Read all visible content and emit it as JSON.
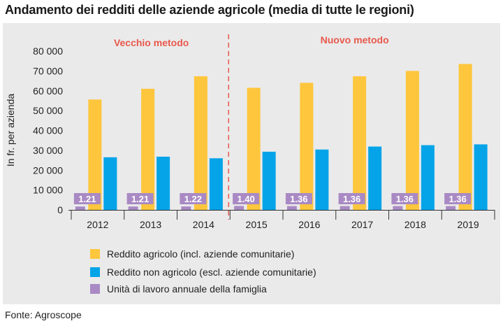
{
  "title": "Andamento dei redditi delle aziende agricole (media di tutte le regioni)",
  "source": "Fonte: Agroscope",
  "colors": {
    "reddito_agricolo": "#fec63c",
    "reddito_non_agricolo": "#05a4e8",
    "unita_lavoro": "#a98ac4",
    "label_box": "#a98ac4",
    "method_text": "#e8584c",
    "divider": "#e8584c",
    "panel_bg": "#eaeaea"
  },
  "chart_data": {
    "type": "bar",
    "title": "Andamento dei redditi delle aziende agricole (media di tutte le regioni)",
    "xlabel": "",
    "ylabel": "In fr. per azienda",
    "ylim": [
      0,
      80000
    ],
    "yticks": [
      0,
      10000,
      20000,
      30000,
      40000,
      50000,
      60000,
      70000,
      80000
    ],
    "ytick_labels": [
      "0",
      "10 000",
      "20 000",
      "30 000",
      "40 000",
      "50 000",
      "60 000",
      "70 000",
      "80 000"
    ],
    "categories": [
      "2012",
      "2013",
      "2014",
      "2015",
      "2016",
      "2017",
      "2018",
      "2019"
    ],
    "series": [
      {
        "name": "Reddito agricolo (incl. aziende comunitarie)",
        "key": "reddito_agricolo",
        "values": [
          55600,
          61000,
          67300,
          61500,
          64000,
          67300,
          70000,
          73500
        ]
      },
      {
        "name": "Reddito non agricolo (escl. aziende comunitarie)",
        "key": "reddito_non_agricolo",
        "values": [
          26500,
          26800,
          26000,
          29300,
          30400,
          31900,
          32600,
          33000
        ]
      }
    ],
    "work_units": {
      "name": "Unità di lavoro annuale della famiglia",
      "key": "unita_lavoro",
      "values": [
        1.21,
        1.21,
        1.22,
        1.4,
        1.36,
        1.36,
        1.36,
        1.36
      ],
      "labels": [
        "1.21",
        "1.21",
        "1.22",
        "1.40",
        "1.36",
        "1.36",
        "1.36",
        "1.36"
      ]
    },
    "annotations": {
      "old_method": "Vecchio metodo",
      "new_method": "Nuovo metodo",
      "divider_between": [
        "2014",
        "2015"
      ]
    },
    "legend_position": "bottom-left",
    "grid": false
  }
}
